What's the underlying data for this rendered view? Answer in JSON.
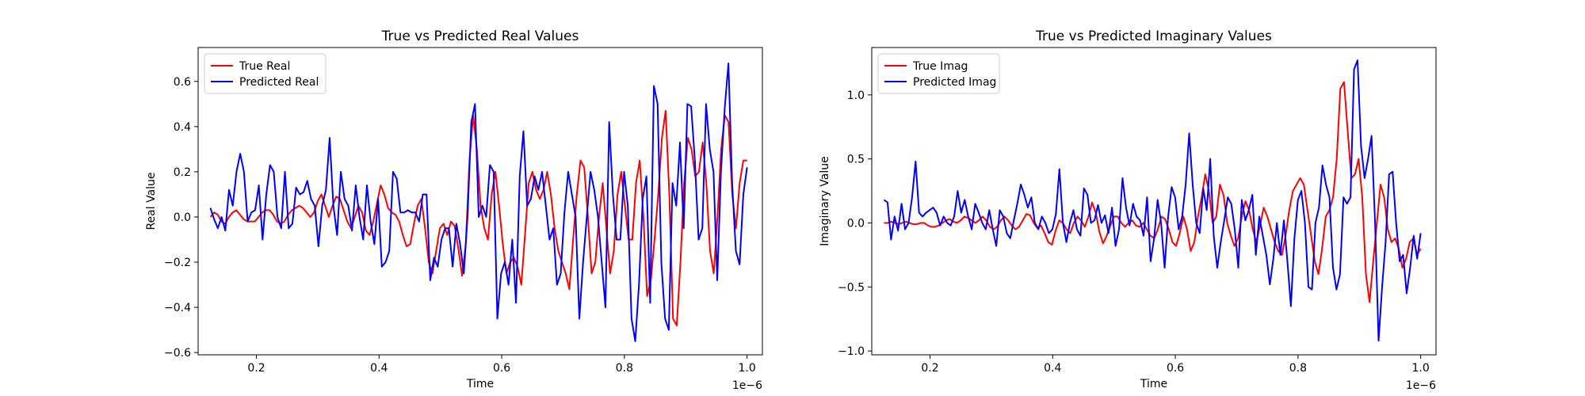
{
  "chart_data": [
    {
      "type": "line",
      "title": "True vs Predicted Real Values",
      "xlabel": "Time",
      "ylabel": "Real Value",
      "x_offset_label": "1e−6",
      "xlim": [
        0.105,
        1.025
      ],
      "ylim": [
        -0.61,
        0.75
      ],
      "xticks": [
        0.2,
        0.4,
        0.6,
        0.8,
        1.0
      ],
      "xtick_labels": [
        "0.2",
        "0.4",
        "0.6",
        "0.8",
        "1.0"
      ],
      "yticks": [
        -0.6,
        -0.4,
        -0.2,
        0.0,
        0.2,
        0.4,
        0.6
      ],
      "ytick_labels": [
        "−0.6",
        "−0.4",
        "−0.2",
        "0.0",
        "0.2",
        "0.4",
        "0.6"
      ],
      "grid": false,
      "legend_position": "upper-left",
      "x_start": 0.125,
      "x_end": 1.0,
      "series": [
        {
          "name": "True Real",
          "color": "#ff0000",
          "values": [
            0.0,
            0.02,
            0.01,
            -0.02,
            -0.03,
            0.0,
            0.02,
            0.03,
            0.01,
            -0.01,
            -0.02,
            -0.02,
            -0.02,
            0.0,
            0.02,
            0.03,
            0.03,
            0.01,
            -0.02,
            -0.03,
            -0.02,
            0.01,
            0.03,
            0.04,
            0.05,
            0.04,
            0.02,
            0.0,
            0.02,
            0.07,
            0.1,
            0.05,
            0.0,
            0.05,
            0.09,
            0.08,
            0.03,
            -0.02,
            -0.05,
            0.0,
            0.05,
            0.02,
            -0.06,
            -0.08,
            -0.02,
            0.06,
            0.14,
            0.1,
            0.04,
            0.02,
            0.01,
            -0.02,
            -0.08,
            -0.13,
            -0.12,
            -0.03,
            0.05,
            0.08,
            -0.05,
            -0.2,
            -0.25,
            -0.15,
            -0.05,
            -0.03,
            -0.08,
            -0.02,
            -0.04,
            -0.14,
            -0.26,
            -0.12,
            0.25,
            0.45,
            0.3,
            0.05,
            -0.05,
            -0.1,
            0.1,
            0.2,
            0.05,
            -0.12,
            -0.25,
            -0.2,
            -0.18,
            -0.22,
            -0.3,
            -0.08,
            0.15,
            0.2,
            0.12,
            0.08,
            0.12,
            0.2,
            0.1,
            -0.05,
            -0.15,
            -0.2,
            -0.25,
            -0.32,
            -0.1,
            0.1,
            0.25,
            0.22,
            0.0,
            -0.25,
            -0.2,
            0.0,
            0.15,
            -0.05,
            -0.25,
            -0.15,
            0.1,
            0.2,
            0.05,
            -0.1,
            -0.1,
            0.15,
            0.25,
            0.0,
            -0.35,
            -0.28,
            -0.1,
            0.1,
            0.35,
            0.47,
            0.1,
            -0.45,
            -0.48,
            -0.2,
            0.15,
            0.35,
            0.3,
            0.18,
            0.2,
            0.33,
            0.15,
            -0.15,
            -0.25,
            0.0,
            0.3,
            0.45,
            0.42,
            0.1,
            -0.05,
            0.15,
            0.25,
            0.25
          ]
        },
        {
          "name": "Predicted Real",
          "color": "#0000ff",
          "values": [
            0.04,
            -0.01,
            -0.05,
            0.0,
            -0.06,
            0.12,
            0.05,
            0.2,
            0.28,
            0.2,
            -0.02,
            0.02,
            0.03,
            0.14,
            -0.1,
            0.1,
            0.23,
            0.2,
            0.0,
            -0.05,
            0.2,
            -0.05,
            -0.03,
            0.13,
            0.1,
            0.11,
            0.16,
            0.08,
            0.05,
            -0.13,
            0.05,
            0.12,
            0.35,
            0.05,
            -0.08,
            0.2,
            0.08,
            0.05,
            -0.06,
            0.14,
            0.0,
            -0.1,
            0.14,
            -0.02,
            -0.12,
            0.08,
            -0.22,
            -0.2,
            -0.15,
            0.2,
            0.17,
            0.02,
            0.02,
            0.03,
            0.02,
            0.02,
            -0.02,
            0.1,
            0.1,
            -0.28,
            -0.18,
            -0.22,
            -0.1,
            -0.05,
            -0.05,
            -0.22,
            -0.03,
            -0.12,
            -0.25,
            0.0,
            0.42,
            0.5,
            0.0,
            0.05,
            0.0,
            0.23,
            0.2,
            -0.45,
            -0.25,
            -0.2,
            -0.3,
            -0.1,
            -0.38,
            0.18,
            0.38,
            0.05,
            0.08,
            0.18,
            0.12,
            0.2,
            0.05,
            -0.1,
            -0.05,
            -0.3,
            -0.25,
            0.02,
            0.2,
            0.1,
            0.0,
            -0.45,
            -0.2,
            0.0,
            0.2,
            0.12,
            0.0,
            -0.2,
            -0.4,
            0.42,
            0.1,
            -0.1,
            -0.1,
            0.2,
            0.05,
            -0.45,
            -0.55,
            -0.3,
            0.08,
            0.18,
            -0.38,
            0.58,
            0.5,
            -0.2,
            -0.45,
            -0.5,
            0.15,
            0.05,
            0.33,
            -0.05,
            0.5,
            0.49,
            0.25,
            -0.1,
            -0.05,
            0.5,
            0.3,
            0.2,
            -0.28,
            0.2,
            0.48,
            0.68,
            0.15,
            -0.15,
            -0.21,
            0.1,
            0.22
          ]
        }
      ]
    },
    {
      "type": "line",
      "title": "True vs Predicted Imaginary Values",
      "xlabel": "Time",
      "ylabel": "Imaginary Value",
      "x_offset_label": "1e−6",
      "xlim": [
        0.105,
        1.025
      ],
      "ylim": [
        -1.03,
        1.37
      ],
      "xticks": [
        0.2,
        0.4,
        0.6,
        0.8,
        1.0
      ],
      "xtick_labels": [
        "0.2",
        "0.4",
        "0.6",
        "0.8",
        "1.0"
      ],
      "yticks": [
        -1.0,
        -0.5,
        0.0,
        0.5,
        1.0
      ],
      "ytick_labels": [
        "−1.0",
        "−0.5",
        "0.0",
        "0.5",
        "1.0"
      ],
      "grid": false,
      "legend_position": "upper-left",
      "x_start": 0.125,
      "x_end": 1.0,
      "series": [
        {
          "name": "True Imag",
          "color": "#ff0000",
          "values": [
            0.0,
            0.0,
            0.01,
            0.0,
            -0.01,
            0.0,
            0.01,
            0.0,
            -0.01,
            -0.01,
            0.0,
            0.0,
            -0.02,
            -0.03,
            -0.03,
            -0.02,
            0.0,
            0.02,
            0.03,
            0.01,
            0.0,
            0.02,
            0.05,
            0.04,
            0.02,
            0.0,
            0.02,
            0.05,
            0.02,
            -0.03,
            -0.05,
            -0.03,
            0.02,
            0.05,
            0.02,
            -0.02,
            -0.05,
            -0.03,
            0.02,
            0.07,
            0.06,
            0.0,
            -0.04,
            -0.02,
            -0.08,
            -0.15,
            -0.17,
            -0.06,
            0.02,
            0.0,
            -0.05,
            -0.08,
            0.0,
            0.05,
            0.02,
            -0.03,
            0.05,
            0.16,
            0.08,
            -0.07,
            -0.16,
            -0.1,
            -0.02,
            0.05,
            0.05,
            0.0,
            -0.03,
            0.0,
            0.02,
            -0.02,
            -0.03,
            0.0,
            -0.05,
            -0.1,
            -0.12,
            -0.05,
            0.05,
            0.03,
            -0.05,
            -0.15,
            -0.18,
            -0.08,
            0.05,
            -0.05,
            -0.22,
            -0.15,
            0.05,
            0.2,
            0.38,
            0.25,
            0.0,
            0.05,
            0.3,
            0.22,
            0.0,
            -0.1,
            -0.18,
            -0.12,
            0.05,
            0.17,
            0.1,
            -0.05,
            -0.15,
            -0.02,
            0.12,
            0.05,
            -0.05,
            -0.15,
            -0.22,
            -0.25,
            -0.1,
            0.1,
            0.25,
            0.3,
            0.35,
            0.3,
            0.1,
            -0.1,
            -0.3,
            -0.4,
            -0.2,
            0.05,
            0.1,
            0.2,
            0.5,
            1.05,
            1.1,
            0.72,
            0.35,
            0.38,
            0.5,
            0.2,
            -0.4,
            -0.62,
            -0.3,
            0.0,
            0.3,
            0.2,
            -0.05,
            -0.15,
            -0.12,
            -0.2,
            -0.35,
            -0.28,
            -0.15,
            -0.12,
            -0.25,
            -0.2
          ]
        },
        {
          "name": "Predicted Imag",
          "color": "#0000ff",
          "values": [
            0.18,
            0.16,
            -0.13,
            0.05,
            -0.06,
            0.15,
            -0.05,
            0.0,
            0.2,
            0.48,
            0.08,
            0.05,
            0.08,
            0.1,
            0.12,
            0.08,
            -0.02,
            0.05,
            0.0,
            -0.02,
            0.05,
            0.25,
            0.08,
            0.18,
            0.05,
            -0.05,
            0.15,
            0.08,
            0.0,
            -0.05,
            0.1,
            -0.05,
            -0.18,
            0.1,
            0.05,
            -0.08,
            -0.12,
            0.02,
            0.15,
            0.3,
            0.22,
            0.12,
            0.2,
            0.0,
            -0.05,
            0.05,
            0.0,
            -0.08,
            -0.05,
            0.07,
            0.42,
            0.0,
            -0.15,
            0.0,
            0.1,
            -0.05,
            -0.1,
            0.27,
            0.22,
            0.0,
            0.02,
            0.14,
            0.0,
            0.06,
            -0.08,
            0.12,
            -0.18,
            -0.05,
            0.35,
            0.12,
            -0.02,
            0.15,
            0.05,
            0.02,
            -0.1,
            0.2,
            -0.3,
            -0.12,
            0.18,
            0.0,
            -0.35,
            0.05,
            0.28,
            0.2,
            -0.05,
            0.05,
            0.3,
            0.7,
            0.3,
            0.0,
            -0.08,
            0.27,
            0.1,
            0.5,
            -0.1,
            -0.35,
            -0.15,
            0.02,
            0.2,
            0.15,
            -0.05,
            -0.35,
            0.18,
            0.02,
            0.1,
            0.22,
            -0.25,
            0.05,
            -0.1,
            -0.25,
            -0.48,
            -0.28,
            0.0,
            -0.25,
            0.02,
            -0.3,
            -0.65,
            -0.12,
            0.18,
            0.25,
            0.0,
            -0.5,
            -0.52,
            0.0,
            0.12,
            0.45,
            0.3,
            0.2,
            -0.35,
            -0.52,
            -0.4,
            0.2,
            0.15,
            0.2,
            1.2,
            1.27,
            0.6,
            0.35,
            0.5,
            0.68,
            0.0,
            -0.92,
            -0.5,
            -0.15,
            0.38,
            0.4,
            0.0,
            -0.3,
            -0.25,
            -0.55,
            -0.35,
            -0.1,
            -0.28,
            -0.08
          ]
        }
      ]
    }
  ]
}
